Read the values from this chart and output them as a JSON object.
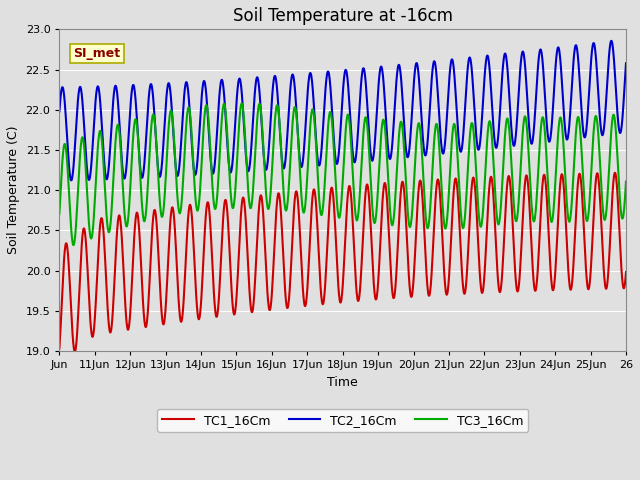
{
  "title": "Soil Temperature at -16cm",
  "xlabel": "Time",
  "ylabel": "Soil Temperature (C)",
  "ylim": [
    19.0,
    23.0
  ],
  "yticks": [
    19.0,
    19.5,
    20.0,
    20.5,
    21.0,
    21.5,
    22.0,
    22.5,
    23.0
  ],
  "background_color": "#e0e0e0",
  "plot_bg_color": "#e0e0e0",
  "grid_color": "#ffffff",
  "annotation_text": "SI_met",
  "annotation_bg": "#ffffcc",
  "annotation_border": "#aaaa00",
  "legend_labels": [
    "TC1_16Cm",
    "TC2_16Cm",
    "TC3_16Cm"
  ],
  "line_colors": [
    "#cc0000",
    "#0000cc",
    "#00aa00"
  ],
  "line_width": 1.5,
  "title_fontsize": 12,
  "label_fontsize": 9,
  "tick_fontsize": 8,
  "n_points": 1600
}
